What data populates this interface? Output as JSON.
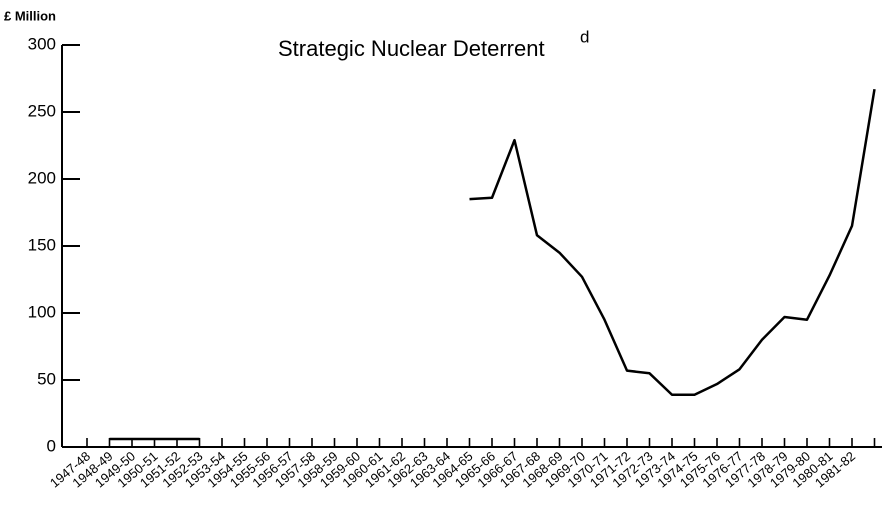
{
  "chart_data": {
    "type": "line",
    "title": "Strategic Nuclear Deterrent",
    "title_note": "d",
    "y_label": "£ Million",
    "categories": [
      "1947-48",
      "1948-49",
      "1949-50",
      "1950-51",
      "1951-52",
      "1952-53",
      "1953-54",
      "1954-55",
      "1955-56",
      "1956-57",
      "1957-58",
      "1958-59",
      "1959-60",
      "1960-61",
      "1961-62",
      "1962-63",
      "1963-64",
      "1964-65",
      "1965-66",
      "1966-67",
      "1967-68",
      "1968-69",
      "1969-70",
      "1970-71",
      "1971-72",
      "1972-73",
      "1973-74",
      "1974-75",
      "1975-76",
      "1976-77",
      "1977-78",
      "1978-79",
      "1979-80",
      "1980-81",
      "1981-82",
      null
    ],
    "series": [
      {
        "name": "Strategic Nuclear Deterrent",
        "color": "#000000",
        "values": [
          null,
          6,
          6,
          6,
          6,
          6,
          null,
          null,
          null,
          null,
          null,
          null,
          null,
          null,
          null,
          null,
          null,
          185,
          186,
          229,
          158,
          145,
          127,
          95,
          57,
          55,
          39,
          39,
          47,
          58,
          80,
          97,
          95,
          128,
          165,
          267
        ]
      }
    ],
    "ylim": [
      0,
      300
    ],
    "yticks": [
      0,
      50,
      100,
      150,
      200,
      250,
      300
    ],
    "grid": false
  }
}
